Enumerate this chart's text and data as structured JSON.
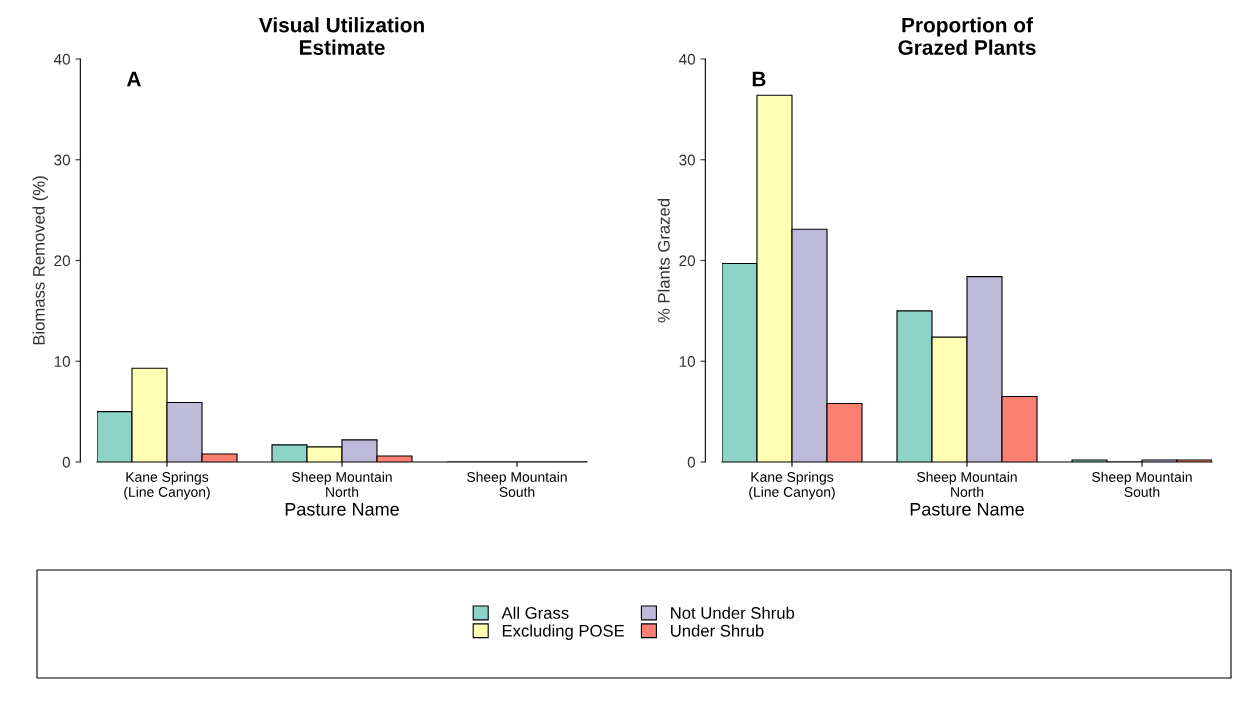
{
  "chart_data": [
    {
      "type": "bar",
      "title": "Visual Utilization\nEstimate",
      "xlabel": "Pasture Name",
      "ylabel": "Biomass Removed (%)",
      "annotations": [
        "A"
      ],
      "categories": [
        "Kane Springs\n(Line Canyon)",
        "Sheep Mountain\nNorth",
        "Sheep Mountain\nSouth"
      ],
      "ylim": [
        0,
        40
      ],
      "yticks": [
        0,
        10,
        20,
        30,
        40
      ],
      "grid": false,
      "legend": "bottom",
      "series": [
        {
          "name": "All Grass",
          "color": "#8dd3c7",
          "values": [
            5.0,
            1.7,
            0
          ]
        },
        {
          "name": "Excluding POSE",
          "color": "#ffffb3",
          "values": [
            9.3,
            1.5,
            0
          ]
        },
        {
          "name": "Not Under Shrub",
          "color": "#bebada",
          "values": [
            5.9,
            2.2,
            0
          ]
        },
        {
          "name": "Under Shrub",
          "color": "#fb8072",
          "values": [
            0.8,
            0.6,
            0
          ]
        }
      ]
    },
    {
      "type": "bar",
      "title": "Proportion of\nGrazed Plants",
      "xlabel": "Pasture Name",
      "ylabel": "% Plants Grazed",
      "annotations": [
        "B"
      ],
      "categories": [
        "Kane Springs\n(Line Canyon)",
        "Sheep Mountain\nNorth",
        "Sheep Mountain\nSouth"
      ],
      "ylim": [
        0,
        40
      ],
      "yticks": [
        0,
        10,
        20,
        30,
        40
      ],
      "grid": false,
      "series": [
        {
          "color": "#8dd3c7",
          "values": [
            19.7,
            15.0,
            0.2
          ]
        },
        {
          "color": "#ffffb3",
          "values": [
            36.4,
            12.4,
            0
          ]
        },
        {
          "color": "#bebada",
          "values": [
            23.1,
            18.4,
            0.2
          ]
        },
        {
          "color": "#fb8072",
          "values": [
            5.8,
            6.5,
            0.2
          ]
        }
      ]
    }
  ]
}
